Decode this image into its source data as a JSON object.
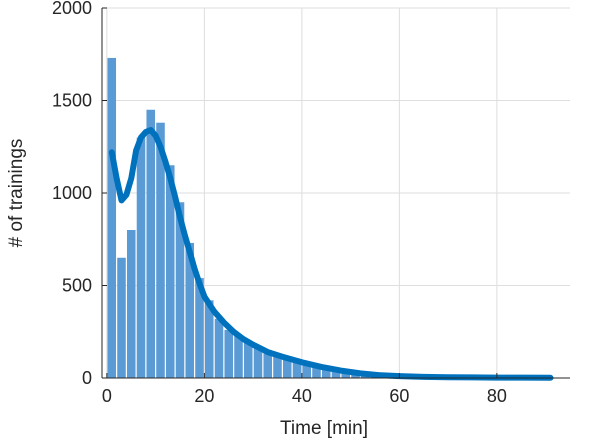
{
  "chart_data": {
    "type": "bar",
    "title": "",
    "xlabel": "Time [min]",
    "ylabel": "# of trainings",
    "xlim": [
      -1,
      95
    ],
    "ylim": [
      0,
      2000
    ],
    "x_ticks": [
      0,
      20,
      40,
      60,
      80
    ],
    "y_ticks": [
      0,
      500,
      1000,
      1500,
      2000
    ],
    "grid": true,
    "bin_width": 2,
    "bar_color": "#5b9bd5",
    "line_color": "#0072bd",
    "histogram": {
      "bin_centers": [
        1,
        3,
        5,
        7,
        9,
        11,
        13,
        15,
        17,
        19,
        21,
        23,
        25,
        27,
        29,
        31,
        33,
        35,
        37,
        39,
        41,
        43,
        45,
        47,
        49,
        51,
        53,
        55,
        57,
        59,
        61,
        63,
        65,
        67,
        69,
        71,
        73,
        75,
        77,
        79,
        81,
        83,
        85,
        87,
        89,
        91
      ],
      "counts": [
        1730,
        650,
        800,
        1300,
        1450,
        1380,
        1150,
        950,
        730,
        540,
        420,
        320,
        260,
        230,
        200,
        170,
        150,
        130,
        110,
        95,
        80,
        70,
        60,
        50,
        40,
        30,
        25,
        20,
        15,
        12,
        10,
        8,
        6,
        5,
        4,
        3,
        3,
        2,
        2,
        2,
        1,
        1,
        1,
        1,
        0,
        0
      ]
    },
    "density_curve": {
      "x": [
        1,
        2,
        3,
        4,
        5,
        6,
        7,
        8,
        9,
        10,
        11,
        12,
        13,
        14,
        15,
        16,
        17,
        18,
        19,
        20,
        22,
        24,
        26,
        28,
        30,
        33,
        36,
        40,
        44,
        48,
        52,
        56,
        60,
        65,
        70,
        75,
        80,
        85,
        91
      ],
      "y": [
        1220,
        1080,
        960,
        990,
        1080,
        1230,
        1300,
        1330,
        1340,
        1310,
        1250,
        1170,
        1080,
        980,
        870,
        770,
        680,
        590,
        510,
        440,
        360,
        300,
        250,
        210,
        180,
        140,
        115,
        85,
        60,
        40,
        25,
        15,
        10,
        6,
        4,
        3,
        2,
        2,
        1
      ]
    }
  }
}
